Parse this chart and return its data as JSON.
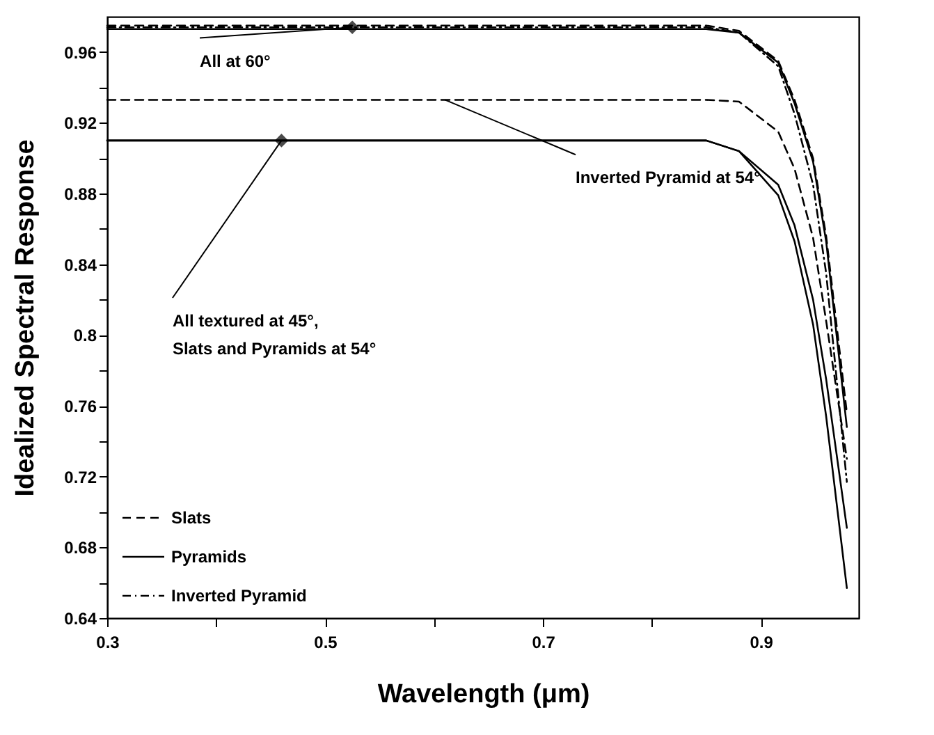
{
  "chart_data": {
    "type": "line",
    "xlabel": "Wavelength (μm)",
    "ylabel": "Idealized Spectral Response",
    "x": [
      0.3,
      0.5,
      0.7,
      0.85,
      0.88,
      0.916,
      0.931,
      0.948,
      0.96,
      0.979
    ],
    "series": [
      {
        "name": "Slats",
        "color": "#000000",
        "line_style": "dashed",
        "values": [
          0.975,
          0.975,
          0.975,
          0.975,
          0.972,
          0.955,
          0.933,
          0.9,
          0.856,
          0.756
        ]
      },
      {
        "name": "Pyramids",
        "color": "#000000",
        "line_style": "solid",
        "values": [
          0.973,
          0.973,
          0.973,
          0.973,
          0.971,
          0.954,
          0.931,
          0.898,
          0.853,
          0.748
        ]
      },
      {
        "name": "Inverted Pyramid",
        "color": "#000000",
        "line_style": "dotted",
        "values": [
          0.974,
          0.974,
          0.974,
          0.974,
          0.971,
          0.952,
          0.925,
          0.885,
          0.835,
          0.717
        ]
      },
      {
        "color": "#000000",
        "line_style": "dashed",
        "values": [
          0.933,
          0.933,
          0.933,
          0.933,
          0.932,
          0.915,
          0.894,
          0.855,
          0.808,
          0.73
        ]
      },
      {
        "color": "#000000",
        "line_style": "solid",
        "values": [
          0.91,
          0.91,
          0.91,
          0.91,
          0.904,
          0.879,
          0.853,
          0.806,
          0.754,
          0.657
        ]
      },
      {
        "color": "#000000",
        "line_style": "solid",
        "values": [
          0.91,
          0.91,
          0.91,
          0.91,
          0.904,
          0.885,
          0.862,
          0.82,
          0.775,
          0.691
        ]
      },
      {
        "type": "scatter",
        "color": "#000000",
        "marker": "diamond",
        "x": [
          0.525,
          0.46
        ],
        "values": [
          0.974,
          0.91
        ]
      }
    ],
    "annotations": [
      {
        "text": "All at 60°",
        "x": 0.525,
        "y": 0.974
      },
      {
        "text": "All textured at 45°, Slats and Pyramids at 54°",
        "x": 0.46,
        "y": 0.91
      },
      {
        "text": "Inverted Pyramid at 54°",
        "x": 0.61,
        "y": 0.933
      }
    ],
    "xlim": [
      0.3,
      0.99
    ],
    "ylim": [
      0.64,
      0.98
    ],
    "xticks": [
      0.3,
      {
        "value": 0.4,
        "label": null
      },
      0.5,
      {
        "value": 0.6,
        "label": null
      },
      0.7,
      {
        "value": 0.8,
        "label": null
      },
      0.9
    ],
    "yticks": [
      0.64,
      {
        "value": 0.66,
        "label": null
      },
      0.68,
      {
        "value": 0.7,
        "label": null
      },
      0.72,
      {
        "value": 0.74,
        "label": null
      },
      0.76,
      {
        "value": 0.78,
        "label": null
      },
      0.8,
      {
        "value": 0.82,
        "label": null
      },
      0.84,
      {
        "value": 0.86,
        "label": null
      },
      0.88,
      {
        "value": 0.9,
        "label": null
      },
      0.92,
      {
        "value": 0.94,
        "label": null
      },
      0.96
    ],
    "legend": "bottom left",
    "grid": false
  }
}
